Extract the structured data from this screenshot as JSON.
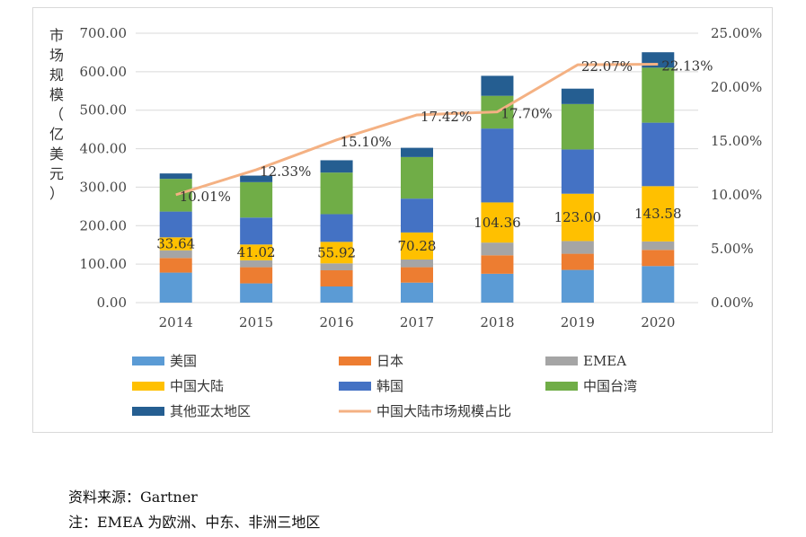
{
  "chart_data": {
    "type": "bar",
    "stacked": true,
    "categories": [
      "2014",
      "2015",
      "2016",
      "2017",
      "2018",
      "2019",
      "2020"
    ],
    "ylabel": "市场规模（亿美元）",
    "ylim": [
      0,
      700
    ],
    "yticks": [
      "0.00",
      "100.00",
      "200.00",
      "300.00",
      "400.00",
      "500.00",
      "600.00",
      "700.00"
    ],
    "y2lim": [
      0,
      25
    ],
    "y2ticks": [
      "0.00%",
      "5.00%",
      "10.00%",
      "15.00%",
      "20.00%",
      "25.00%"
    ],
    "grid": true,
    "legend_position": "bottom",
    "series": [
      {
        "name": "美国",
        "color": "#5b9bd5",
        "values": [
          78,
          50,
          42,
          52,
          75,
          85,
          95
        ]
      },
      {
        "name": "日本",
        "color": "#ed7d31",
        "values": [
          38,
          42,
          42,
          40,
          48,
          42,
          42
        ]
      },
      {
        "name": "EMEA",
        "color": "#a5a5a5",
        "values": [
          20,
          18,
          18,
          20,
          33,
          33,
          22
        ]
      },
      {
        "name": "中国大陆",
        "color": "#ffc000",
        "values": [
          33.64,
          41.02,
          55.92,
          70.28,
          104.36,
          123.0,
          143.58
        ],
        "labels": [
          "33.64",
          "41.02",
          "55.92",
          "70.28",
          "104.36",
          "123.00",
          "143.58"
        ]
      },
      {
        "name": "韩国",
        "color": "#4472c4",
        "values": [
          67,
          70,
          72,
          88,
          192,
          115,
          165
        ]
      },
      {
        "name": "中国台湾",
        "color": "#70ad47",
        "values": [
          85,
          92,
          108,
          108,
          85,
          118,
          143
        ]
      },
      {
        "name": "其他亚太地区",
        "color": "#255e91",
        "values": [
          14,
          17,
          32,
          24,
          52,
          40,
          40
        ]
      }
    ],
    "line": {
      "name": "中国大陆市场规模占比",
      "color": "#f4b183",
      "values": [
        10.01,
        12.33,
        15.1,
        17.42,
        17.7,
        22.07,
        22.13
      ],
      "labels": [
        "10.01%",
        "12.33%",
        "15.10%",
        "17.42%",
        "17.70%",
        "22.07%",
        "22.13%"
      ]
    }
  },
  "notes": {
    "source": "资料来源：Gartner",
    "note": "注：EMEA 为欧洲、中东、非洲三地区"
  }
}
